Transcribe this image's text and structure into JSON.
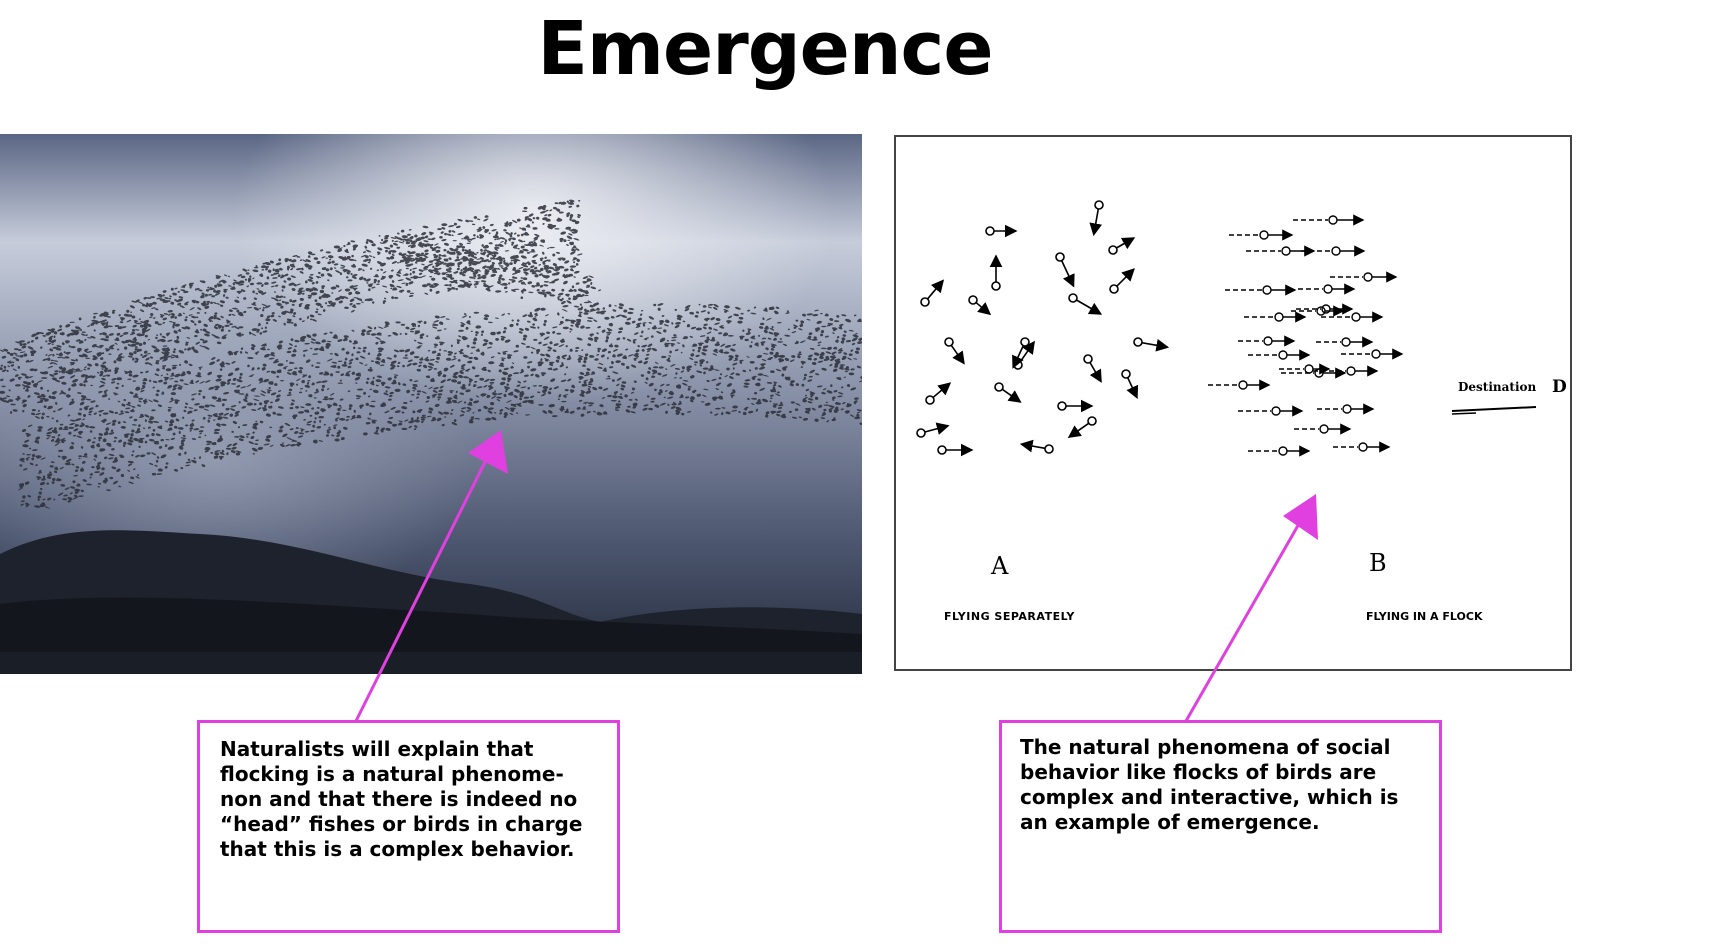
{
  "title": "Emergence",
  "diagram": {
    "label_a": "A",
    "label_b": "B",
    "label_d": "D",
    "destination": "Destination",
    "caption_a": "FLYING SEPARATELY",
    "caption_b": "FLYING IN A FLOCK"
  },
  "callouts": {
    "left": "Naturalists will explain that flocking is a natural phenome-non and that there is indeed no “head” fishes or birds in charge that this is a complex behavior.",
    "right": "The natural phenomena of social behavior like flocks of birds are complex and interactive, which is an example of emergence."
  },
  "colors": {
    "accent": "#e040e0",
    "sky_dark": "#2a3346",
    "sky_light": "#c9d0de"
  }
}
